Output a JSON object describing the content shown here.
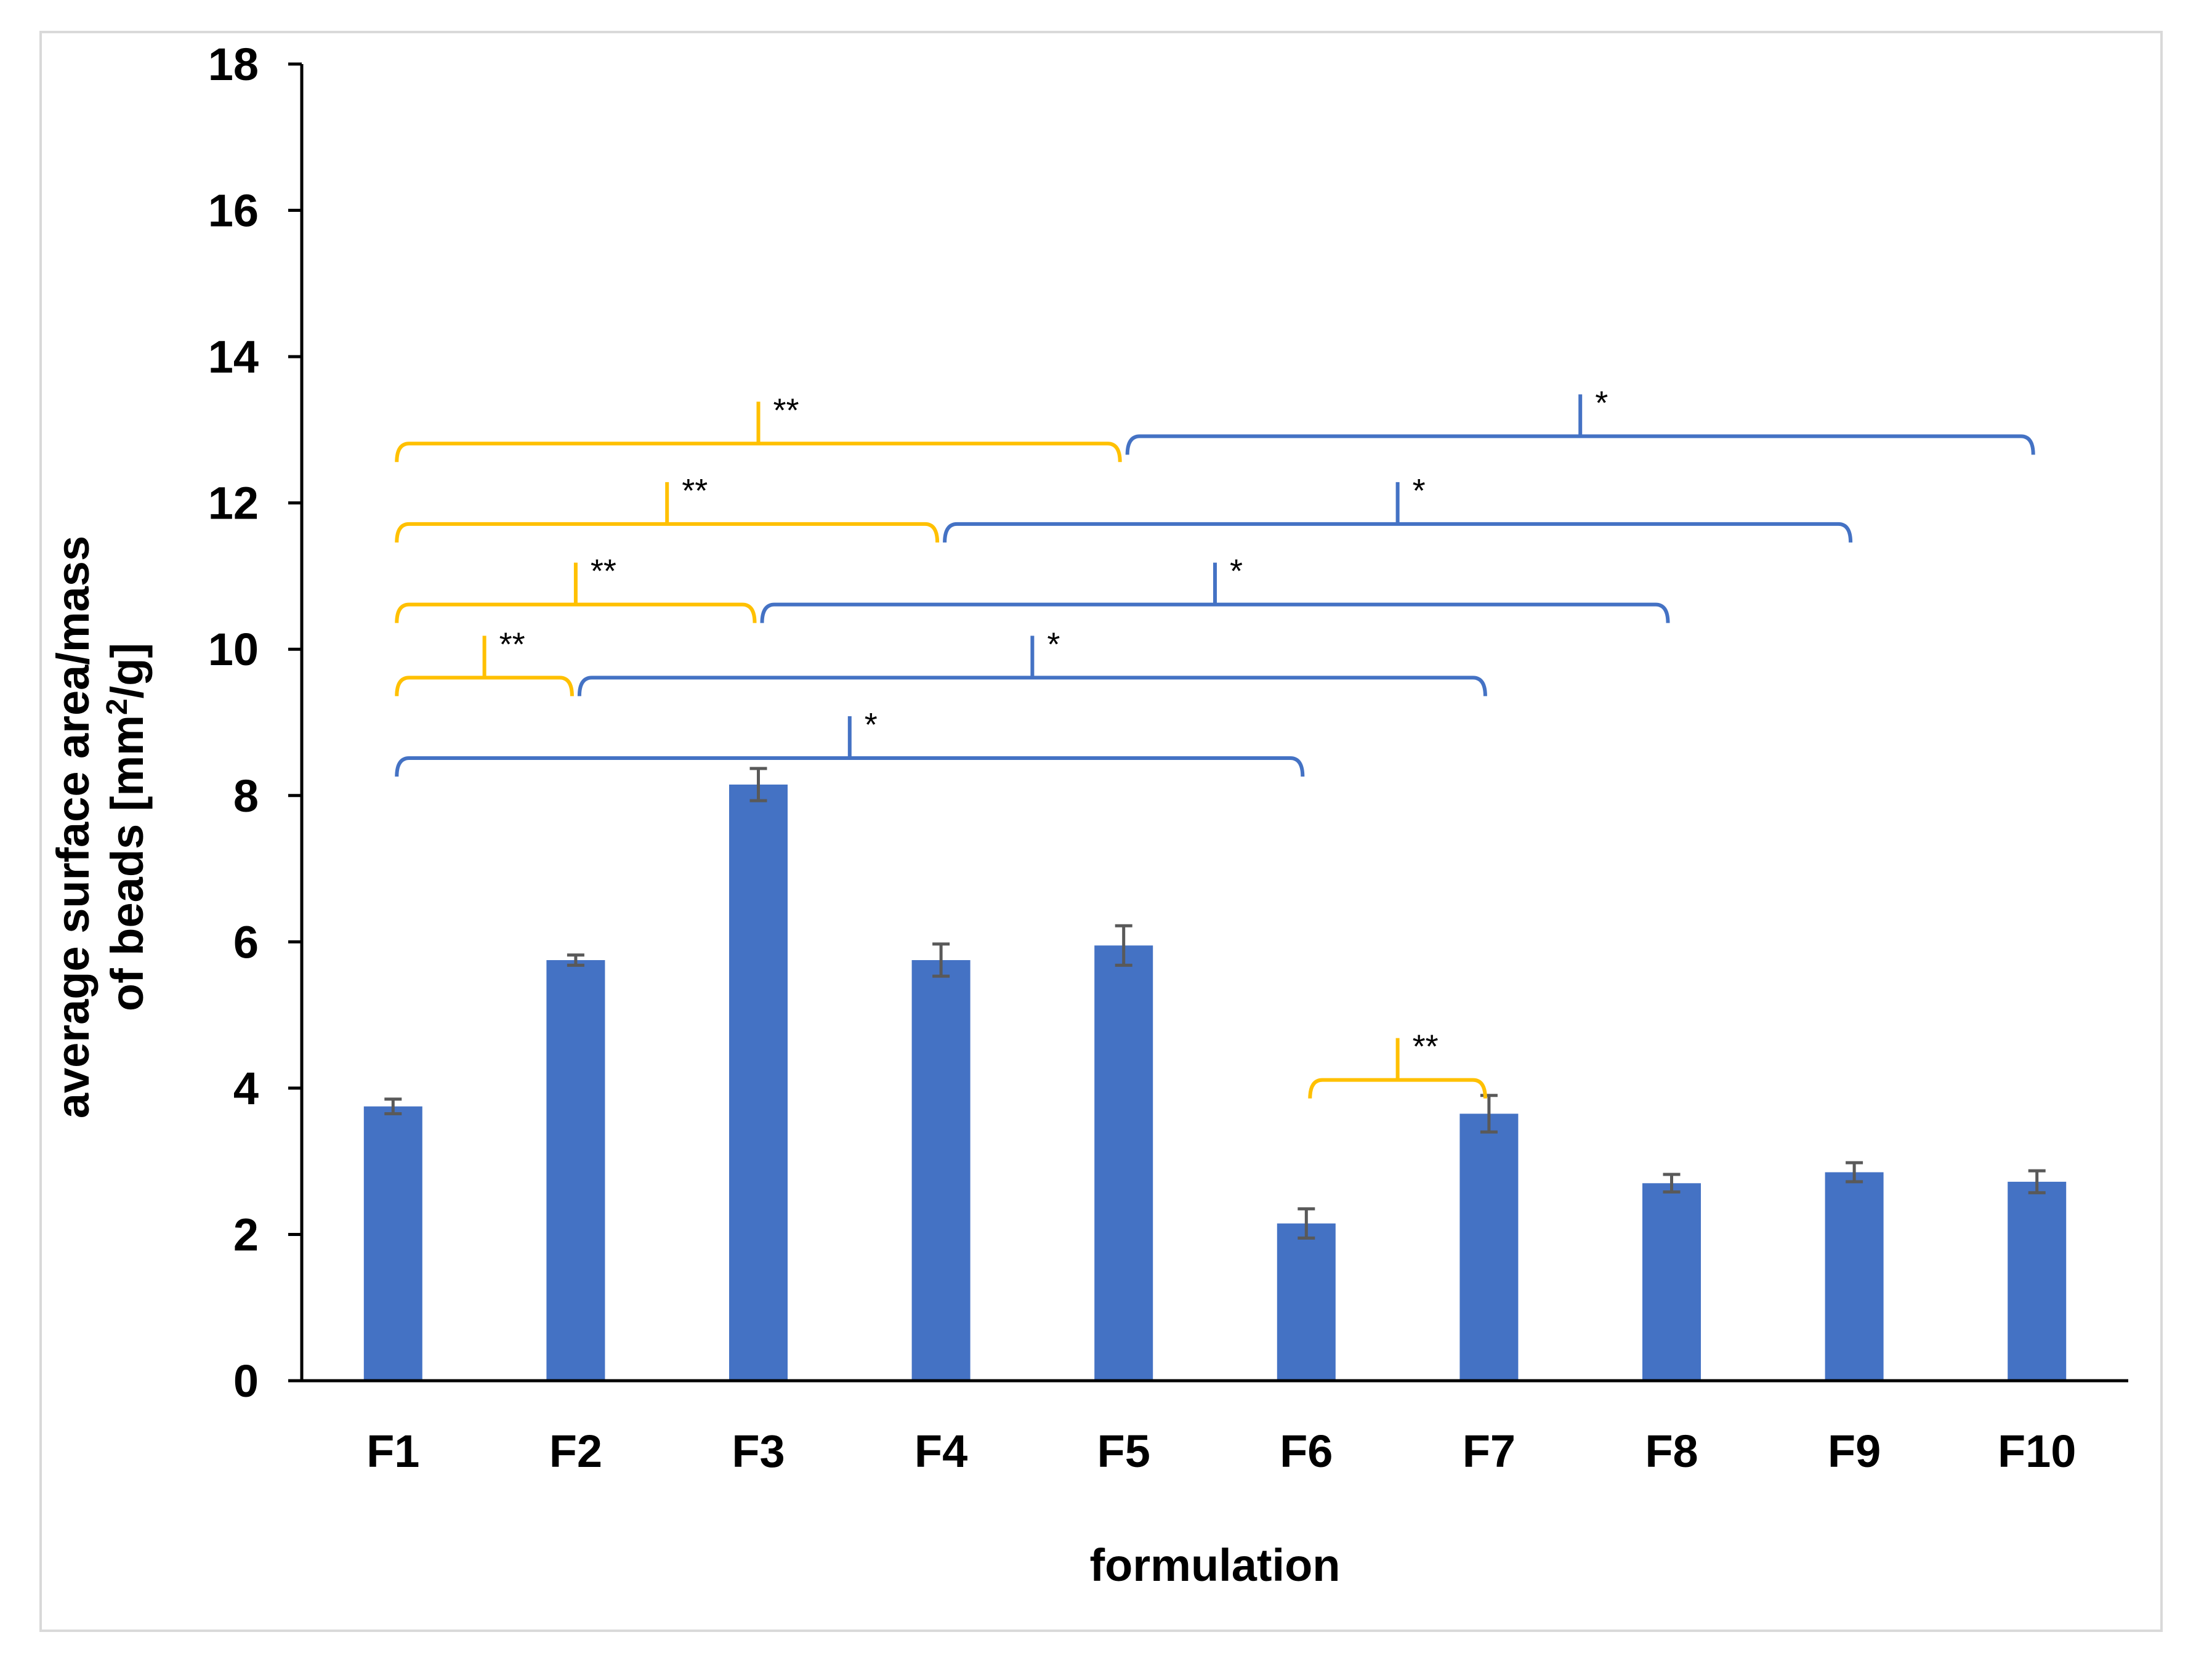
{
  "chart_data": {
    "type": "bar",
    "categories": [
      "F1",
      "F2",
      "F3",
      "F4",
      "F5",
      "F6",
      "F7",
      "F8",
      "F9",
      "F10"
    ],
    "values": [
      3.75,
      5.75,
      8.15,
      5.75,
      5.95,
      2.15,
      3.65,
      2.7,
      2.85,
      2.72
    ],
    "errors": [
      0.1,
      0.07,
      0.22,
      0.22,
      0.27,
      0.2,
      0.25,
      0.12,
      0.13,
      0.15
    ],
    "xlabel": "formulation",
    "ylabel_line1": "average  surface area/mass",
    "ylabel_line2_pre": "of beads [mm",
    "ylabel_line2_sup": "2",
    "ylabel_line2_post": "/g]",
    "ylim": [
      0,
      18
    ],
    "yticks": [
      0,
      2,
      4,
      6,
      8,
      10,
      12,
      14,
      16,
      18
    ],
    "bar_color": "#4472c4",
    "error_color": "#595959",
    "significance": [
      {
        "from": "F1",
        "to": "F5",
        "peak": 13.3,
        "label": "**",
        "color": "#ffc000"
      },
      {
        "from": "F5",
        "to": "F10",
        "peak": 13.4,
        "label": "*",
        "color": "#4472c4"
      },
      {
        "from": "F1",
        "to": "F4",
        "peak": 12.2,
        "label": "**",
        "color": "#ffc000"
      },
      {
        "from": "F4",
        "to": "F9",
        "peak": 12.2,
        "label": "*",
        "color": "#4472c4"
      },
      {
        "from": "F1",
        "to": "F3",
        "peak": 11.1,
        "label": "**",
        "color": "#ffc000"
      },
      {
        "from": "F3",
        "to": "F8",
        "peak": 11.1,
        "label": "*",
        "color": "#4472c4"
      },
      {
        "from": "F1",
        "to": "F2",
        "peak": 10.1,
        "label": "**",
        "color": "#ffc000"
      },
      {
        "from": "F2",
        "to": "F7",
        "peak": 10.1,
        "label": "*",
        "color": "#4472c4"
      },
      {
        "from": "F1",
        "to": "F6",
        "peak": 9.0,
        "label": "*",
        "color": "#4472c4"
      },
      {
        "from": "F6",
        "to": "F7",
        "peak": 4.6,
        "label": "**",
        "color": "#ffc000"
      }
    ]
  }
}
